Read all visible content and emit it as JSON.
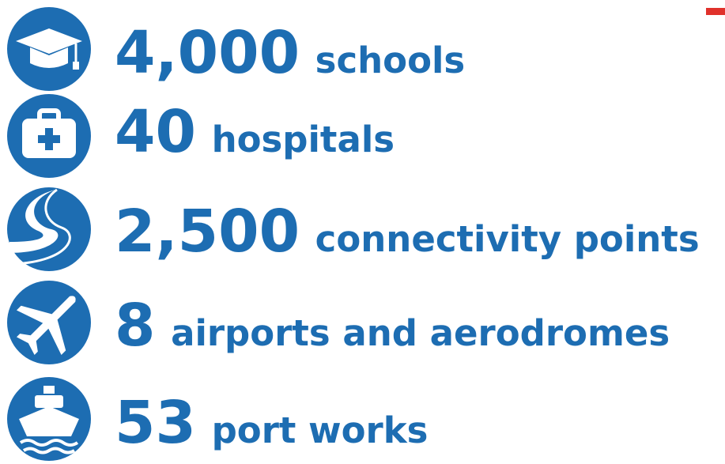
{
  "items": [
    {
      "number": "4,000",
      "label": "schools"
    },
    {
      "number": "40",
      "label": "hospitals"
    },
    {
      "number": "2,500",
      "label": "connectivity points"
    },
    {
      "number": "8",
      "label": "airports and aerodromes"
    },
    {
      "number": "53",
      "label": "port works"
    }
  ]
}
